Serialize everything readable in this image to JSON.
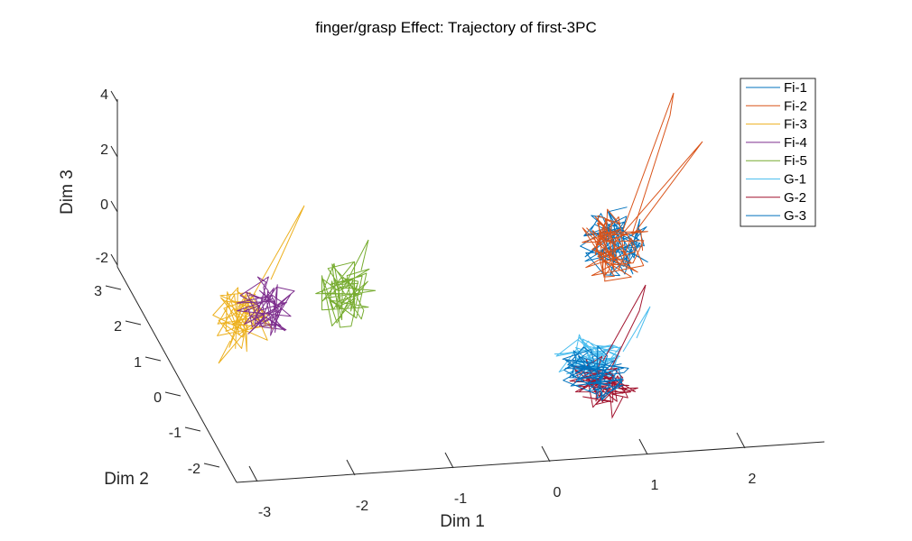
{
  "chart_data": {
    "type": "line",
    "projection": "3d",
    "title": "finger/grasp Effect: Trajectory of first-3PC",
    "xlabel": "Dim 1",
    "ylabel": "Dim 2",
    "zlabel": "Dim 3",
    "x_ticks": [
      "-3",
      "-2",
      "-1",
      "0",
      "1",
      "2"
    ],
    "y_ticks": [
      "-2",
      "-1",
      "0",
      "1",
      "2",
      "3"
    ],
    "z_ticks": [
      "-2",
      "0",
      "2",
      "4"
    ],
    "legend_position": "top-right",
    "grid": false,
    "series": [
      {
        "name": "Fi-1",
        "color": "#0072BD",
        "group": "upper-right"
      },
      {
        "name": "Fi-2",
        "color": "#D95319",
        "group": "upper-right"
      },
      {
        "name": "Fi-3",
        "color": "#EDB120",
        "group": "left"
      },
      {
        "name": "Fi-4",
        "color": "#7E2F8E",
        "group": "left"
      },
      {
        "name": "Fi-5",
        "color": "#77AC30",
        "group": "middle-left"
      },
      {
        "name": "G-1",
        "color": "#4DBEEE",
        "group": "lower-right"
      },
      {
        "name": "G-2",
        "color": "#A2142F",
        "group": "lower-right"
      },
      {
        "name": "G-3",
        "color": "#0072BD",
        "group": "lower-right"
      }
    ]
  }
}
